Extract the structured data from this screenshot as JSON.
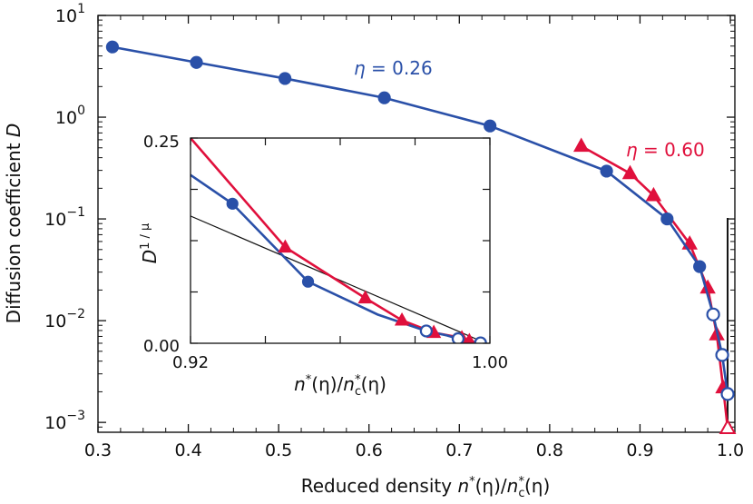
{
  "chart_data": [
    {
      "type": "line",
      "scale_y": "log",
      "title": "",
      "xlabel": {
        "prefix": "Reduced density ",
        "sym_n": "n",
        "sup1": "*",
        "mid": "(η)/",
        "sym_nc": "n",
        "sub_c": "c",
        "sup2": "*",
        "suffix": "(η)"
      },
      "ylabel": {
        "prefix": "Diffusion coefficient ",
        "sym": "D"
      },
      "xlim": [
        0.3,
        1.005
      ],
      "ylim": [
        0.0008,
        10
      ],
      "xticks": [
        {
          "value": 0.3,
          "label": "0.3"
        },
        {
          "value": 0.4,
          "label": "0.4"
        },
        {
          "value": 0.5,
          "label": "0.5"
        },
        {
          "value": 0.6,
          "label": "0.6"
        },
        {
          "value": 0.7,
          "label": "0.7"
        },
        {
          "value": 0.8,
          "label": "0.8"
        },
        {
          "value": 0.9,
          "label": "0.9"
        },
        {
          "value": 1.0,
          "label": "1.0"
        }
      ],
      "yticks": [
        {
          "value": 10,
          "base": "10",
          "exp": "1"
        },
        {
          "value": 1,
          "base": "10",
          "exp": "0"
        },
        {
          "value": 0.1,
          "base": "10",
          "exp": "−1"
        },
        {
          "value": 0.01,
          "base": "10",
          "exp": "−2"
        },
        {
          "value": 0.001,
          "base": "10",
          "exp": "−3"
        }
      ],
      "critical_line_x": 0.997,
      "series": [
        {
          "name": "η = 0.26",
          "color": "#2a50a8",
          "marker": "circle",
          "x": [
            0.316,
            0.409,
            0.507,
            0.617,
            0.734,
            0.863,
            0.93,
            0.966,
            0.981,
            0.991,
            0.997
          ],
          "y": [
            4.9,
            3.45,
            2.4,
            1.55,
            0.82,
            0.295,
            0.1,
            0.034,
            0.0115,
            0.0046,
            0.0019
          ],
          "hollow": [
            false,
            false,
            false,
            false,
            false,
            false,
            false,
            false,
            true,
            true,
            true
          ],
          "label": {
            "pre": "η",
            "post": " = 0.26"
          }
        },
        {
          "name": "η = 0.60",
          "color": "#e0103c",
          "marker": "triangle",
          "x": [
            0.835,
            0.889,
            0.915,
            0.955,
            0.975,
            0.985,
            0.992,
            0.997
          ],
          "y": [
            0.52,
            0.28,
            0.17,
            0.057,
            0.021,
            0.0073,
            0.0022,
            0.00088
          ],
          "hollow": [
            false,
            false,
            false,
            false,
            false,
            false,
            false,
            true
          ],
          "label": {
            "pre": "η",
            "post": " = 0.60"
          }
        }
      ]
    },
    {
      "type": "line",
      "role": "inset",
      "xlabel": {
        "sym_n": "n",
        "sup1": "*",
        "mid": "(η)/",
        "sym_nc": "n",
        "sub_c": "c",
        "sup2": "*",
        "suffix": "(η)"
      },
      "ylabel": {
        "sym": "D",
        "sup": "1 / μ"
      },
      "xlim": [
        0.92,
        1.0
      ],
      "ylim": [
        0.0,
        0.25
      ],
      "xticks_labeled": [
        {
          "value": 0.92,
          "label": "0.92"
        },
        {
          "value": 1.0,
          "label": "1.00"
        }
      ],
      "yticks_labeled": [
        {
          "value": 0.0,
          "label": "0.00"
        },
        {
          "value": 0.25,
          "label": "0.25"
        }
      ],
      "reference_line": {
        "x": [
          0.92,
          0.999
        ],
        "y": [
          0.155,
          0.0
        ]
      },
      "series": [
        {
          "name": "η = 0.26",
          "color": "#2a50a8",
          "marker": "circle",
          "x": [
            0.92,
            0.9312,
            0.9514,
            0.97,
            0.983,
            0.9885,
            0.9915,
            0.9945,
            0.9975
          ],
          "y": [
            0.205,
            0.17,
            0.075,
            0.035,
            0.015,
            0.0095,
            0.0055,
            0.0025,
            0.0005
          ],
          "hollow": [
            false,
            false,
            false,
            false,
            true,
            false,
            true,
            false,
            true
          ],
          "show_marker": [
            false,
            true,
            true,
            false,
            true,
            false,
            true,
            false,
            true
          ]
        },
        {
          "name": "η = 0.60",
          "color": "#e0103c",
          "marker": "triangle",
          "x": [
            0.92,
            0.9453,
            0.9667,
            0.9765,
            0.985,
            0.9925,
            0.9945,
            0.997
          ],
          "y": [
            0.25,
            0.117,
            0.055,
            0.028,
            0.013,
            0.0065,
            0.003,
            0.0005
          ],
          "hollow": [
            false,
            false,
            false,
            false,
            false,
            false,
            false,
            false
          ],
          "show_marker": [
            false,
            true,
            true,
            true,
            true,
            true,
            true,
            false
          ]
        }
      ]
    }
  ]
}
